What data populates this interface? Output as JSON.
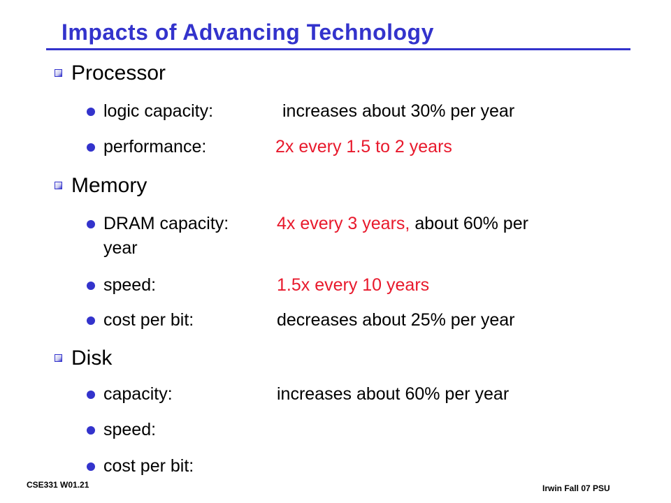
{
  "slide": {
    "title": "Impacts of Advancing Technology",
    "sections": {
      "processor": {
        "heading": "Processor",
        "logic_label": "logic capacity:",
        "logic_value": "increases about 30% per year",
        "perf_label": "performance:",
        "perf_value": "2x every 1.5 to 2 years"
      },
      "memory": {
        "heading": "Memory",
        "dram_label": "DRAM capacity:",
        "dram_value_red": "4x every 3 years,",
        "dram_value_rest": "about 60% per",
        "dram_value_wrap": "year",
        "speed_label": "speed:",
        "speed_value": "1.5x every 10 years",
        "cost_label": "cost per bit:",
        "cost_value": "decreases about 25% per year"
      },
      "disk": {
        "heading": "Disk",
        "capacity_label": "capacity:",
        "capacity_value": "increases about 60% per year",
        "speed_label": "speed:",
        "cost_label": "cost per bit:"
      }
    },
    "footer": {
      "left": "CSE331  W01.21",
      "right": "Irwin Fall 07  PSU"
    },
    "colors": {
      "title": "#3333cc",
      "bullet": "#3333cc",
      "highlight": "#e8192c"
    },
    "icons": {
      "level1_bullet": "square-bullet-icon",
      "level2_bullet": "round-bullet-icon"
    }
  }
}
